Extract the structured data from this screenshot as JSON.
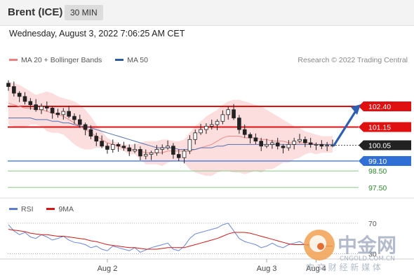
{
  "header": {
    "instrument": "Brent (ICE)",
    "timeframe": "30 MIN"
  },
  "datetime": "Wednesday, August 3, 2022 7:06:25 AM CET",
  "legend": {
    "top": [
      {
        "label": "MA 20 + Bollinger Bands",
        "color": "#f08080"
      },
      {
        "label": "MA 50",
        "color": "#2f5a9e"
      }
    ],
    "bottom": [
      {
        "label": "RSI",
        "color": "#5b7bd5"
      },
      {
        "label": "9MA",
        "color": "#d01818"
      }
    ]
  },
  "credit": "Research © 2022 Trading Central",
  "watermark": {
    "name": "中金网",
    "url": "CNGOLD.COM.CN",
    "tagline": "中 文 财 经 新 媒 体"
  },
  "chart_data": {
    "type": "line",
    "price_panel": {
      "ylim": [
        96.9,
        104.6
      ],
      "levels": [
        {
          "value": 102.4,
          "label": "102.40",
          "style": "resistance",
          "color": "#e01010"
        },
        {
          "value": 101.15,
          "label": "101.15",
          "style": "resistance",
          "color": "#e01010"
        },
        {
          "value": 100.05,
          "label": "100.05",
          "style": "current",
          "color": "#222222"
        },
        {
          "value": 99.1,
          "label": "99.10",
          "style": "support",
          "color": "#2f6fd6"
        },
        {
          "value": 98.5,
          "label": "98.50",
          "style": "target",
          "color": "#2e8b2e"
        },
        {
          "value": 97.5,
          "label": "97.50",
          "style": "target",
          "color": "#2e8b2e"
        }
      ],
      "close": [
        103.6,
        103.2,
        103.0,
        102.7,
        102.5,
        102.2,
        102.4,
        102.3,
        102.0,
        101.9,
        102.1,
        101.8,
        101.6,
        101.3,
        101.0,
        100.6,
        100.3,
        100.0,
        99.8,
        100.1,
        100.0,
        99.9,
        99.7,
        99.8,
        99.4,
        99.5,
        99.6,
        99.8,
        99.9,
        100.0,
        99.5,
        99.3,
        99.7,
        100.4,
        100.8,
        101.0,
        101.2,
        101.3,
        101.5,
        101.9,
        102.2,
        101.7,
        101.0,
        100.7,
        100.5,
        100.3,
        100.0,
        100.1,
        100.2,
        100.0,
        99.9,
        100.1,
        100.3,
        100.4,
        100.2,
        100.1,
        100.1,
        100.0,
        100.05,
        100.05
      ],
      "ma20": [
        102.6,
        102.5,
        102.4,
        102.3,
        102.3,
        102.2,
        102.2,
        102.1,
        102.0,
        101.9,
        101.8,
        101.6,
        101.4,
        101.2,
        101.0,
        100.8,
        100.6,
        100.4,
        100.2,
        100.1,
        100.0,
        99.9,
        99.8,
        99.8,
        99.7,
        99.6,
        99.6,
        99.6,
        99.6,
        99.7,
        99.7,
        99.7,
        99.7,
        99.7,
        99.8,
        99.9,
        100.0,
        100.1,
        100.3,
        100.5,
        100.6,
        100.6,
        100.6,
        100.5,
        100.5,
        100.5,
        100.4,
        100.4,
        100.3,
        100.3,
        100.3,
        100.2,
        100.2,
        100.2,
        100.2,
        100.2,
        100.1,
        100.1,
        100.1,
        100.1
      ],
      "bb_upper": [
        103.9,
        103.8,
        103.7,
        103.5,
        103.3,
        103.1,
        103.2,
        103.3,
        103.2,
        103.0,
        102.9,
        102.8,
        102.7,
        102.5,
        102.2,
        101.8,
        101.3,
        100.9,
        100.5,
        100.3,
        100.2,
        100.1,
        100.1,
        100.1,
        100.2,
        100.3,
        100.3,
        100.3,
        100.4,
        100.4,
        100.3,
        100.3,
        100.4,
        100.8,
        101.2,
        101.5,
        101.8,
        102.0,
        102.2,
        102.5,
        102.7,
        102.8,
        102.8,
        102.7,
        102.6,
        102.5,
        102.4,
        102.2,
        102.0,
        101.8,
        101.6,
        101.4,
        101.2,
        101.1,
        100.9,
        100.8,
        100.7,
        100.6,
        100.6,
        100.6
      ],
      "bb_lower": [
        101.3,
        101.2,
        101.1,
        101.1,
        101.3,
        101.3,
        101.2,
        100.9,
        100.8,
        100.8,
        100.7,
        100.4,
        100.1,
        99.9,
        99.8,
        99.8,
        99.9,
        99.9,
        99.9,
        99.9,
        99.8,
        99.7,
        99.5,
        99.5,
        99.2,
        98.9,
        98.9,
        98.9,
        98.8,
        99.0,
        99.1,
        99.1,
        99.0,
        98.6,
        98.4,
        98.3,
        98.2,
        98.2,
        98.4,
        98.5,
        98.5,
        98.4,
        98.4,
        98.3,
        98.4,
        98.5,
        98.4,
        98.6,
        98.6,
        98.8,
        99.0,
        99.0,
        99.2,
        99.3,
        99.5,
        99.6,
        99.5,
        99.6,
        99.6,
        99.6
      ],
      "ma50": [
        101.7,
        101.7,
        101.7,
        101.7,
        101.7,
        101.6,
        101.6,
        101.6,
        101.5,
        101.5,
        101.4,
        101.4,
        101.3,
        101.2,
        101.2,
        101.1,
        101.0,
        100.9,
        100.8,
        100.7,
        100.6,
        100.5,
        100.4,
        100.3,
        100.2,
        100.1,
        100.0,
        99.9,
        99.9,
        99.9,
        99.9,
        99.8,
        99.8,
        99.8,
        99.8,
        99.9,
        99.9,
        99.9,
        100.0,
        100.0,
        100.1,
        100.1,
        100.1,
        100.1,
        100.1,
        100.1,
        100.1,
        100.1,
        100.1,
        100.1,
        100.1,
        100.1,
        100.1,
        100.1,
        100.1,
        100.1,
        100.1,
        100.1,
        100.1,
        100.1
      ],
      "forecast_arrow": {
        "from": 100.05,
        "to": 102.4
      }
    },
    "rsi_panel": {
      "ylim": [
        25,
        80
      ],
      "tick_labels": [
        {
          "value": 70,
          "label": "70"
        },
        {
          "value": 30,
          "label": "30"
        }
      ],
      "rsi": [
        68,
        60,
        55,
        58,
        52,
        50,
        55,
        52,
        48,
        50,
        53,
        48,
        45,
        44,
        42,
        38,
        40,
        36,
        34,
        40,
        38,
        36,
        34,
        38,
        32,
        35,
        38,
        40,
        42,
        44,
        36,
        34,
        40,
        50,
        56,
        58,
        60,
        62,
        64,
        68,
        70,
        60,
        50,
        46,
        44,
        42,
        38,
        40,
        44,
        40,
        38,
        42,
        44,
        46,
        42,
        40,
        40,
        38,
        40,
        40
      ],
      "rsi_ma": [
        62,
        61,
        60,
        59,
        57,
        56,
        55,
        55,
        54,
        53,
        53,
        52,
        51,
        50,
        49,
        47,
        46,
        44,
        42,
        41,
        40,
        39,
        38,
        38,
        37,
        36,
        36,
        36,
        37,
        38,
        38,
        38,
        38,
        40,
        42,
        44,
        46,
        48,
        50,
        53,
        56,
        58,
        58,
        58,
        57,
        55,
        53,
        51,
        49,
        47,
        45,
        43,
        42,
        42,
        42,
        42,
        41,
        41,
        40,
        40
      ]
    },
    "x_axis": {
      "tick_labels": [
        {
          "index": 18,
          "label": "Aug 2"
        },
        {
          "index": 47,
          "label": "Aug 3"
        },
        {
          "index": 56,
          "label": "Aug 4"
        }
      ]
    }
  }
}
